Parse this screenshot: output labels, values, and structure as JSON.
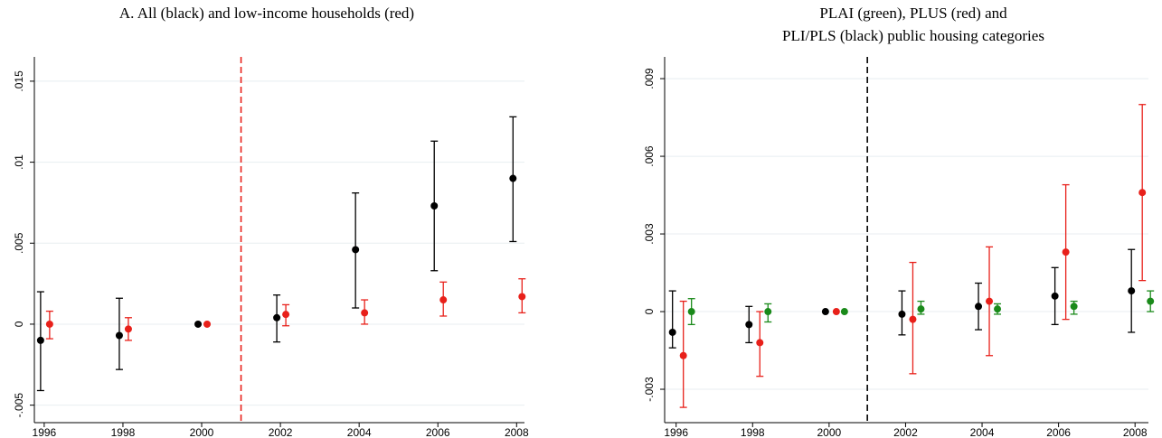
{
  "chart_data": [
    {
      "type": "errorbar",
      "title": "A. All (black) and low-income households (red)",
      "x": [
        1996,
        1998,
        2000,
        2002,
        2004,
        2006,
        2008
      ],
      "xlim": [
        1995.75,
        2008.2
      ],
      "xticks": [
        1996,
        1998,
        2000,
        2002,
        2004,
        2006,
        2008
      ],
      "ylim": [
        -0.00608,
        0.0165
      ],
      "yticks": [
        {
          "value": -0.005,
          "label": "-.005"
        },
        0,
        {
          "value": 0.005,
          "label": ".005"
        },
        {
          "value": 0.01,
          "label": ".01"
        },
        {
          "value": 0.015,
          "label": ".015"
        }
      ],
      "grid": true,
      "vline": 2001,
      "vline_color": "#e8201a",
      "series": [
        {
          "color": "#000000",
          "values": [
            -0.001,
            -0.0007,
            0,
            0.0004,
            0.0046,
            0.0073,
            0.009
          ],
          "lower": [
            -0.0041,
            -0.0028,
            null,
            -0.0011,
            0.001,
            0.0033,
            0.0051
          ],
          "upper": [
            0.002,
            0.0016,
            null,
            0.0018,
            0.0081,
            0.0113,
            0.0128
          ]
        },
        {
          "color": "#e8201a",
          "values": [
            0,
            -0.0003,
            0,
            0.0006,
            0.0007,
            0.0015,
            0.0017
          ],
          "lower": [
            -0.0009,
            -0.001,
            null,
            -0.0001,
            0,
            0.0005,
            0.0007
          ],
          "upper": [
            0.0008,
            0.0004,
            null,
            0.0012,
            0.0015,
            0.0026,
            0.0028
          ]
        }
      ]
    },
    {
      "type": "errorbar",
      "title": [
        "PLAI (green), PLUS (red) and",
        "PLI/PLS (black) public housing categories"
      ],
      "x": [
        1996,
        1998,
        2000,
        2002,
        2004,
        2006,
        2008
      ],
      "xlim": [
        1995.7,
        2008.35
      ],
      "xticks": [
        1996,
        1998,
        2000,
        2002,
        2004,
        2006,
        2008
      ],
      "ylim": [
        -0.00429,
        0.00984
      ],
      "yticks": [
        {
          "value": -0.003,
          "label": "-.003"
        },
        0,
        {
          "value": 0.003,
          "label": ".003"
        },
        {
          "value": 0.006,
          "label": ".006"
        },
        {
          "value": 0.009,
          "label": ".009"
        }
      ],
      "grid": true,
      "vline": 2001,
      "vline_color": "#000000",
      "series": [
        {
          "color": "#000000",
          "values": [
            -0.0008,
            -0.0005,
            0,
            -0.0001,
            0.0002,
            0.0006,
            0.0008
          ],
          "lower": [
            -0.0014,
            -0.0012,
            null,
            -0.0009,
            -0.0007,
            -0.0005,
            -0.0008
          ],
          "upper": [
            0.0008,
            0.0002,
            null,
            0.0008,
            0.0011,
            0.0017,
            0.0024
          ]
        },
        {
          "color": "#e8201a",
          "values": [
            -0.0017,
            -0.0012,
            0,
            -0.0003,
            0.0004,
            0.0023,
            0.0046
          ],
          "lower": [
            -0.0037,
            -0.0025,
            null,
            -0.0024,
            -0.0017,
            -0.0003,
            0.0012
          ],
          "upper": [
            0.0004,
            0,
            null,
            0.0019,
            0.0025,
            0.0049,
            0.008
          ]
        },
        {
          "color": "#1a8a1a",
          "values": [
            0,
            0,
            0,
            0.0001,
            0.0001,
            0.0002,
            0.0004
          ],
          "lower": [
            -0.0005,
            -0.0004,
            null,
            -0.0001,
            -0.0001,
            -0.0001,
            0
          ],
          "upper": [
            0.0005,
            0.0003,
            null,
            0.0004,
            0.0003,
            0.0004,
            0.0008
          ]
        }
      ]
    }
  ]
}
